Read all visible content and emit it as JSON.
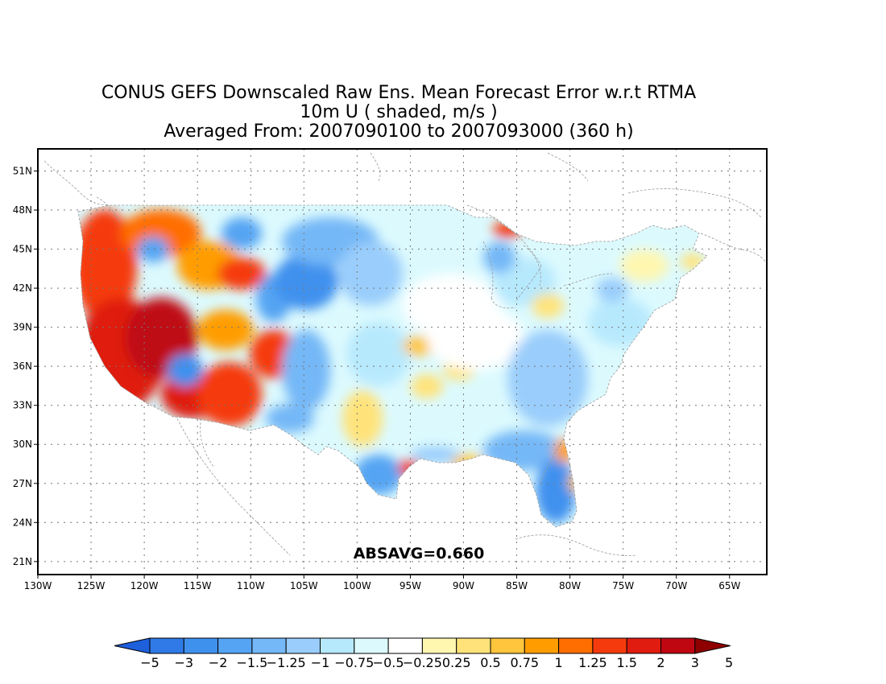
{
  "title": {
    "line1": "CONUS GEFS Downscaled Raw Ens. Mean Forecast Error w.r.t RTMA",
    "line2": "10m U ( shaded, m/s )",
    "line3": "Averaged From: 2007090100 to 2007093000 (360 h)"
  },
  "annotation": "ABSAVG=0.660",
  "lat_labels": [
    "51N",
    "48N",
    "45N",
    "42N",
    "39N",
    "36N",
    "33N",
    "30N",
    "27N",
    "24N",
    "21N"
  ],
  "lon_labels": [
    "130W",
    "125W",
    "120W",
    "115W",
    "110W",
    "105W",
    "100W",
    "95W",
    "90W",
    "85W",
    "80W",
    "75W",
    "70W",
    "65W"
  ],
  "map": {
    "lon_range": [
      -130,
      -61.5
    ],
    "lat_range": [
      20,
      52.7
    ],
    "lat_values": [
      51,
      48,
      45,
      42,
      39,
      36,
      33,
      30,
      27,
      24,
      21
    ],
    "lon_values": [
      -130,
      -125,
      -120,
      -115,
      -110,
      -105,
      -100,
      -95,
      -90,
      -85,
      -80,
      -75,
      -70,
      -65
    ],
    "grid": true
  },
  "colorbar": {
    "colors": [
      "#1e5fdc",
      "#2f7ae6",
      "#3f91ee",
      "#55a4f3",
      "#75b8f7",
      "#9acdfb",
      "#b7e9fd",
      "#dcfafe",
      "#ffffff",
      "#fff7b0",
      "#ffe37a",
      "#ffc53c",
      "#ff9d00",
      "#ff6e00",
      "#f53b0e",
      "#df1c0f",
      "#bf0712",
      "#8f0000"
    ],
    "labels": [
      "-5",
      "-3",
      "-2",
      "-1.5",
      "-1.25",
      "-1",
      "-0.75",
      "-0.5",
      "-0.25",
      "0.25",
      "0.5",
      "0.75",
      "1",
      "1.25",
      "1.5",
      "2",
      "3",
      "5"
    ]
  }
}
